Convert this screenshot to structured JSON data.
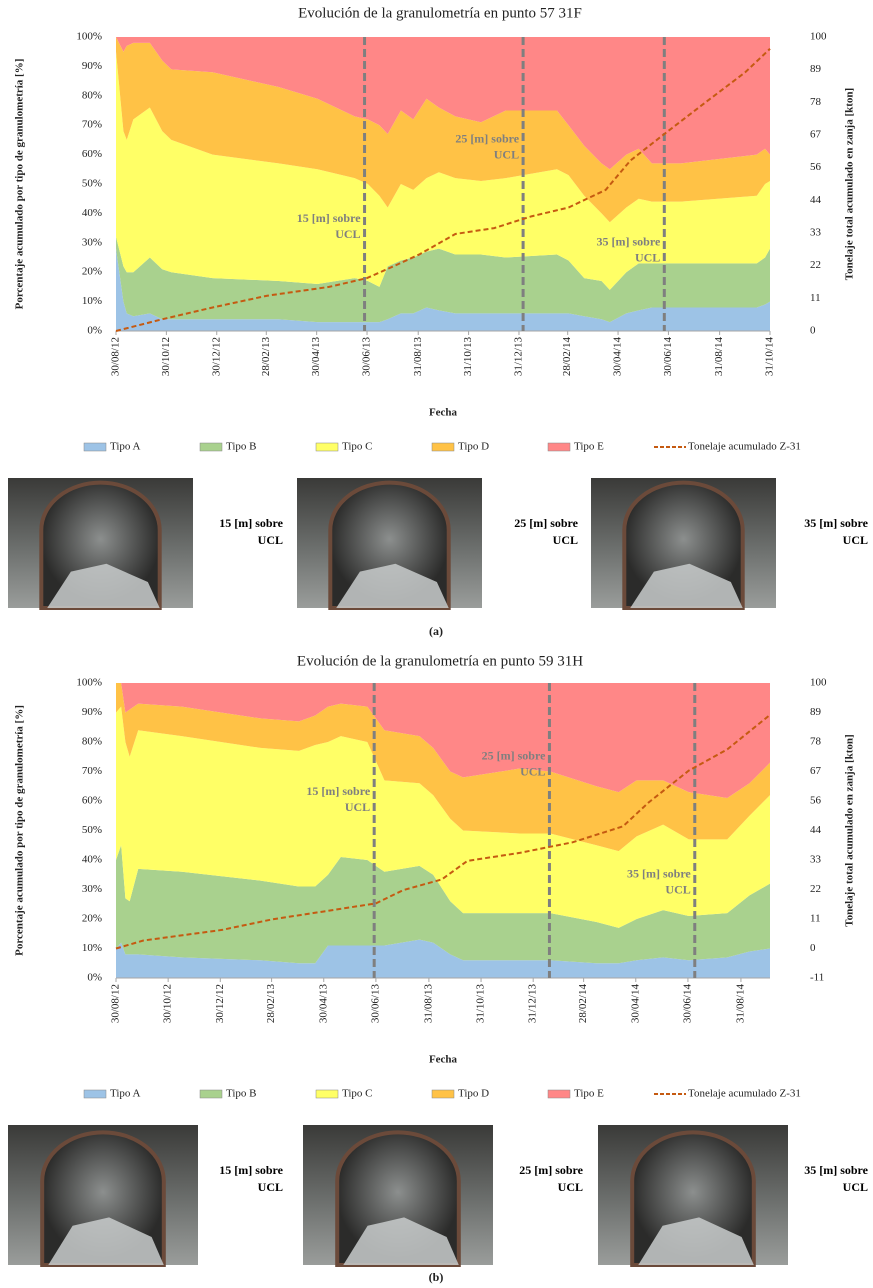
{
  "chart_data": [
    {
      "type": "area",
      "stacked": true,
      "title": "Evolución de la granulometría en punto 57 31F",
      "xlabel": "Fecha",
      "ylabel": "Porcentaje acumulado por tipo de granulometría [%]",
      "y2label": "Tonelaje total acumulado en zanja [kton]",
      "x": [
        "2012-08-30",
        "2012-09-08",
        "2012-09-12",
        "2012-09-20",
        "2012-10-10",
        "2012-10-25",
        "2012-11-05",
        "2012-12-25",
        "2013-03-15",
        "2013-05-01",
        "2013-06-15",
        "2013-07-01",
        "2013-07-15",
        "2013-07-25",
        "2013-08-10",
        "2013-08-25",
        "2013-09-10",
        "2013-09-25",
        "2013-10-15",
        "2013-11-15",
        "2013-12-15",
        "2014-02-15",
        "2014-03-01",
        "2014-03-20",
        "2014-04-10",
        "2014-04-20",
        "2014-05-10",
        "2014-05-25",
        "2014-06-10",
        "2014-07-15",
        "2014-10-15",
        "2014-10-25",
        "2014-10-31"
      ],
      "xlim": [
        "2012-08-30",
        "2014-10-31"
      ],
      "xticks": [
        {
          "value": "2012-08-30",
          "label": "30/08/12"
        },
        {
          "value": "2012-10-30",
          "label": "30/10/12"
        },
        {
          "value": "2012-12-30",
          "label": "30/12/12"
        },
        {
          "value": "2013-02-28",
          "label": "28/02/13"
        },
        {
          "value": "2013-04-30",
          "label": "30/04/13"
        },
        {
          "value": "2013-06-30",
          "label": "30/06/13"
        },
        {
          "value": "2013-08-31",
          "label": "31/08/13"
        },
        {
          "value": "2013-10-31",
          "label": "31/10/13"
        },
        {
          "value": "2013-12-31",
          "label": "31/12/13"
        },
        {
          "value": "2014-02-28",
          "label": "28/02/14"
        },
        {
          "value": "2014-04-30",
          "label": "30/04/14"
        },
        {
          "value": "2014-06-30",
          "label": "30/06/14"
        },
        {
          "value": "2014-08-31",
          "label": "31/08/14"
        },
        {
          "value": "2014-10-31",
          "label": "31/10/14"
        }
      ],
      "ylim": [
        0,
        100
      ],
      "yticks": [
        {
          "value": 0,
          "label": "0%"
        },
        {
          "value": 10,
          "label": "10%"
        },
        {
          "value": 20,
          "label": "20%"
        },
        {
          "value": 30,
          "label": "30%"
        },
        {
          "value": 40,
          "label": "40%"
        },
        {
          "value": 50,
          "label": "50%"
        },
        {
          "value": 60,
          "label": "60%"
        },
        {
          "value": 70,
          "label": "70%"
        },
        {
          "value": 80,
          "label": "80%"
        },
        {
          "value": 90,
          "label": "90%"
        },
        {
          "value": 100,
          "label": "100%"
        }
      ],
      "y2lim": [
        0,
        100
      ],
      "y2ticks": [
        0,
        {
          "value": 11.11,
          "label": "11"
        },
        {
          "value": 22.22,
          "label": "22"
        },
        {
          "value": 33.33,
          "label": "33"
        },
        {
          "value": 44.44,
          "label": "44"
        },
        {
          "value": 55.56,
          "label": "56"
        },
        {
          "value": 66.67,
          "label": "67"
        },
        {
          "value": 77.78,
          "label": "78"
        },
        {
          "value": 88.89,
          "label": "89"
        },
        100
      ],
      "grid": false,
      "series": [
        {
          "name": "Tipo A",
          "color": "#9dc3e6",
          "values": [
            28,
            10,
            6,
            5,
            6,
            4,
            4,
            4,
            4,
            3,
            3,
            3,
            3,
            4,
            6,
            6,
            8,
            7,
            6,
            6,
            6,
            6,
            6,
            5,
            4,
            3,
            6,
            7,
            8,
            8,
            8,
            9,
            10
          ]
        },
        {
          "name": "Tipo B",
          "color": "#a9d18e",
          "values": [
            4,
            12,
            14,
            15,
            19,
            17,
            16,
            14,
            13,
            13,
            15,
            14,
            12,
            18,
            18,
            19,
            19,
            21,
            20,
            20,
            19,
            20,
            18,
            13,
            13,
            11,
            14,
            16,
            15,
            15,
            15,
            16,
            18
          ]
        },
        {
          "name": "Tipo C",
          "color": "#ffff66",
          "values": [
            63,
            46,
            45,
            52,
            51,
            47,
            45,
            42,
            40,
            39,
            34,
            33,
            31,
            20,
            26,
            23,
            25,
            26,
            26,
            25,
            27,
            29,
            29,
            28,
            23,
            23,
            22,
            22,
            21,
            21,
            23,
            25,
            23
          ]
        },
        {
          "name": "Tipo D",
          "color": "#ffc246",
          "values": [
            5,
            27,
            32,
            26,
            22,
            24,
            24,
            28,
            26,
            24,
            21,
            22,
            24,
            25,
            25,
            24,
            27,
            22,
            21,
            20,
            23,
            20,
            17,
            17,
            17,
            18,
            18,
            17,
            13,
            13,
            14,
            12,
            9
          ]
        },
        {
          "name": "Tipo E",
          "color": "#ff8787",
          "values": [
            0,
            5,
            3,
            2,
            2,
            8,
            11,
            12,
            17,
            21,
            27,
            28,
            30,
            33,
            25,
            28,
            21,
            24,
            27,
            29,
            25,
            25,
            30,
            37,
            43,
            45,
            40,
            38,
            43,
            43,
            40,
            38,
            40
          ]
        },
        {
          "name": "Tonelaje acumulado Z-31",
          "type": "line",
          "axis": "y2",
          "color": "#c55a11",
          "x": [
            "2012-08-30",
            "2012-10-25",
            "2012-12-25",
            "2013-03-01",
            "2013-05-15",
            "2013-06-30",
            "2013-08-01",
            "2013-09-01",
            "2013-10-15",
            "2013-12-01",
            "2014-01-15",
            "2014-03-01",
            "2014-04-15",
            "2014-05-15",
            "2014-06-25",
            "2014-08-15",
            "2014-10-01",
            "2014-10-31"
          ],
          "values": [
            0,
            4,
            8,
            12,
            15,
            18,
            22,
            26,
            33,
            35,
            39,
            42,
            48,
            58,
            67,
            78,
            88,
            96
          ]
        }
      ],
      "annotations": [
        {
          "x": "2013-06-27",
          "text": [
            "15 [m] sobre",
            "UCL"
          ]
        },
        {
          "x": "2014-01-05",
          "text": [
            "25 [m] sobre",
            "UCL"
          ]
        },
        {
          "x": "2014-06-25",
          "text": [
            "35 [m] sobre",
            "UCL"
          ]
        }
      ],
      "photos": [
        {
          "caption": [
            "15 [m] sobre",
            "UCL"
          ]
        },
        {
          "caption": [
            "25 [m] sobre",
            "UCL"
          ]
        },
        {
          "caption": [
            "35 [m] sobre",
            "UCL"
          ]
        }
      ],
      "caption": "(a)"
    },
    {
      "type": "area",
      "stacked": true,
      "title": "Evolución de la granulometría en punto 59 31H",
      "xlabel": "Fecha",
      "ylabel": "Porcentaje acumulado por tipo de granulometría [%]",
      "y2label": "Tonelaje total acumulado en zanja [kton]",
      "x": [
        "2012-08-30",
        "2012-09-05",
        "2012-09-10",
        "2012-09-15",
        "2012-09-25",
        "2012-11-15",
        "2013-02-15",
        "2013-04-01",
        "2013-04-20",
        "2013-05-05",
        "2013-05-20",
        "2013-06-20",
        "2013-07-10",
        "2013-08-20",
        "2013-09-05",
        "2013-09-25",
        "2013-10-10",
        "2013-12-15",
        "2014-01-20",
        "2014-03-15",
        "2014-04-10",
        "2014-05-01",
        "2014-06-01",
        "2014-07-01",
        "2014-08-15",
        "2014-09-10",
        "2014-10-04"
      ],
      "xlim": [
        "2012-08-30",
        "2014-10-04"
      ],
      "xticks": [
        {
          "value": "2012-08-30",
          "label": "30/08/12"
        },
        {
          "value": "2012-10-30",
          "label": "30/10/12"
        },
        {
          "value": "2012-12-30",
          "label": "30/12/12"
        },
        {
          "value": "2013-02-28",
          "label": "28/02/13"
        },
        {
          "value": "2013-04-30",
          "label": "30/04/13"
        },
        {
          "value": "2013-06-30",
          "label": "30/06/13"
        },
        {
          "value": "2013-08-31",
          "label": "31/08/13"
        },
        {
          "value": "2013-10-31",
          "label": "31/10/13"
        },
        {
          "value": "2013-12-31",
          "label": "31/12/13"
        },
        {
          "value": "2014-02-28",
          "label": "28/02/14"
        },
        {
          "value": "2014-04-30",
          "label": "30/04/14"
        },
        {
          "value": "2014-06-30",
          "label": "30/06/14"
        },
        {
          "value": "2014-08-31",
          "label": "31/08/14"
        }
      ],
      "ylim": [
        0,
        100
      ],
      "yticks": [
        {
          "value": 0,
          "label": "0%"
        },
        {
          "value": 10,
          "label": "10%"
        },
        {
          "value": 20,
          "label": "20%"
        },
        {
          "value": 30,
          "label": "30%"
        },
        {
          "value": 40,
          "label": "40%"
        },
        {
          "value": 50,
          "label": "50%"
        },
        {
          "value": 60,
          "label": "60%"
        },
        {
          "value": 70,
          "label": "70%"
        },
        {
          "value": 80,
          "label": "80%"
        },
        {
          "value": 90,
          "label": "90%"
        },
        {
          "value": 100,
          "label": "100%"
        }
      ],
      "y2lim": [
        -11.11,
        100
      ],
      "y2ticks": [
        {
          "value": -11.11,
          "label": "-11"
        },
        0,
        {
          "value": 11.11,
          "label": "11"
        },
        {
          "value": 22.22,
          "label": "22"
        },
        {
          "value": 33.33,
          "label": "33"
        },
        {
          "value": 44.44,
          "label": "44"
        },
        {
          "value": 55.56,
          "label": "56"
        },
        {
          "value": 66.67,
          "label": "67"
        },
        {
          "value": 77.78,
          "label": "78"
        },
        {
          "value": 88.89,
          "label": "89"
        },
        100
      ],
      "grid": false,
      "series": [
        {
          "name": "Tipo A",
          "color": "#9dc3e6",
          "values": [
            10,
            12,
            8,
            8,
            8,
            7,
            6,
            5,
            5,
            11,
            11,
            11,
            11,
            13,
            12,
            8,
            6,
            6,
            6,
            5,
            5,
            6,
            7,
            6,
            7,
            9,
            10
          ]
        },
        {
          "name": "Tipo B",
          "color": "#a9d18e",
          "values": [
            30,
            33,
            19,
            18,
            29,
            29,
            27,
            26,
            26,
            24,
            30,
            29,
            25,
            25,
            23,
            18,
            16,
            16,
            16,
            14,
            12,
            14,
            16,
            15,
            15,
            19,
            22
          ]
        },
        {
          "name": "Tipo C",
          "color": "#ffff66",
          "values": [
            50,
            47,
            53,
            49,
            47,
            46,
            45,
            46,
            48,
            45,
            41,
            40,
            31,
            28,
            27,
            28,
            28,
            27,
            27,
            26,
            26,
            28,
            29,
            26,
            25,
            27,
            30
          ]
        },
        {
          "name": "Tipo D",
          "color": "#ffc246",
          "values": [
            10,
            8,
            10,
            16,
            9,
            10,
            10,
            10,
            10,
            12,
            11,
            12,
            17,
            16,
            16,
            16,
            18,
            22,
            21,
            20,
            20,
            19,
            15,
            16,
            14,
            11,
            11
          ]
        },
        {
          "name": "Tipo E",
          "color": "#ff8787",
          "values": [
            0,
            0,
            10,
            9,
            7,
            8,
            12,
            13,
            11,
            8,
            7,
            8,
            16,
            18,
            22,
            30,
            32,
            29,
            30,
            35,
            37,
            33,
            33,
            37,
            39,
            34,
            27
          ]
        },
        {
          "name": "Tonelaje acumulado Z-31",
          "type": "line",
          "axis": "y2",
          "color": "#c55a11",
          "x": [
            "2012-08-30",
            "2012-10-01",
            "2013-01-01",
            "2013-03-01",
            "2013-05-01",
            "2013-06-30",
            "2013-08-01",
            "2013-09-15",
            "2013-10-15",
            "2013-12-15",
            "2014-02-15",
            "2014-04-15",
            "2014-05-15",
            "2014-07-01",
            "2014-08-15",
            "2014-10-04"
          ],
          "values": [
            0,
            3,
            7,
            11,
            14,
            17,
            22,
            26,
            33,
            36,
            40,
            46,
            55,
            67,
            75,
            88
          ]
        }
      ],
      "annotations": [
        {
          "x": "2013-06-28",
          "text": [
            "15 [m] sobre",
            "UCL"
          ]
        },
        {
          "x": "2014-01-19",
          "text": [
            "25 [m] sobre",
            "UCL"
          ]
        },
        {
          "x": "2014-07-08",
          "text": [
            "35 [m] sobre",
            "UCL"
          ]
        }
      ],
      "photos": [
        {
          "caption": [
            "15 [m] sobre",
            "UCL"
          ]
        },
        {
          "caption": [
            "25 [m] sobre",
            "UCL"
          ]
        },
        {
          "caption": [
            "35 [m] sobre",
            "UCL"
          ]
        }
      ],
      "caption": "(b)"
    }
  ]
}
